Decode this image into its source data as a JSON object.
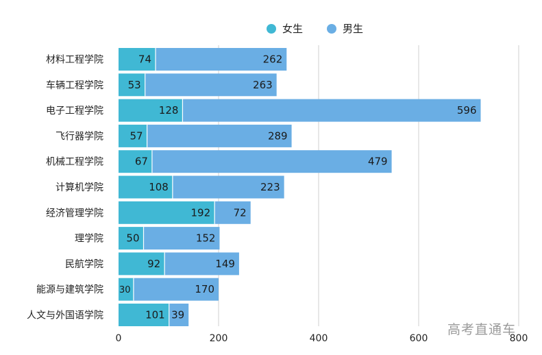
{
  "chart_data": {
    "type": "bar",
    "orientation": "horizontal",
    "stacked": true,
    "categories": [
      "材料工程学院",
      "车辆工程学院",
      "电子工程学院",
      "飞行器学院",
      "机械工程学院",
      "计算机学院",
      "经济管理学院",
      "理学院",
      "民航学院",
      "能源与建筑学院",
      "人文与外国语学院"
    ],
    "series": [
      {
        "name": "女生",
        "color": "#40b8d4",
        "values": [
          74,
          53,
          128,
          57,
          67,
          108,
          192,
          50,
          92,
          30,
          101
        ]
      },
      {
        "name": "男生",
        "color": "#6aaee4",
        "values": [
          262,
          263,
          596,
          289,
          479,
          223,
          72,
          152,
          149,
          170,
          39
        ]
      }
    ],
    "xlim": [
      0,
      800
    ],
    "xticks": [
      "0",
      "200",
      "400",
      "600",
      "800"
    ],
    "grid": true,
    "legend": "top-center"
  },
  "watermark": "高考直通车"
}
